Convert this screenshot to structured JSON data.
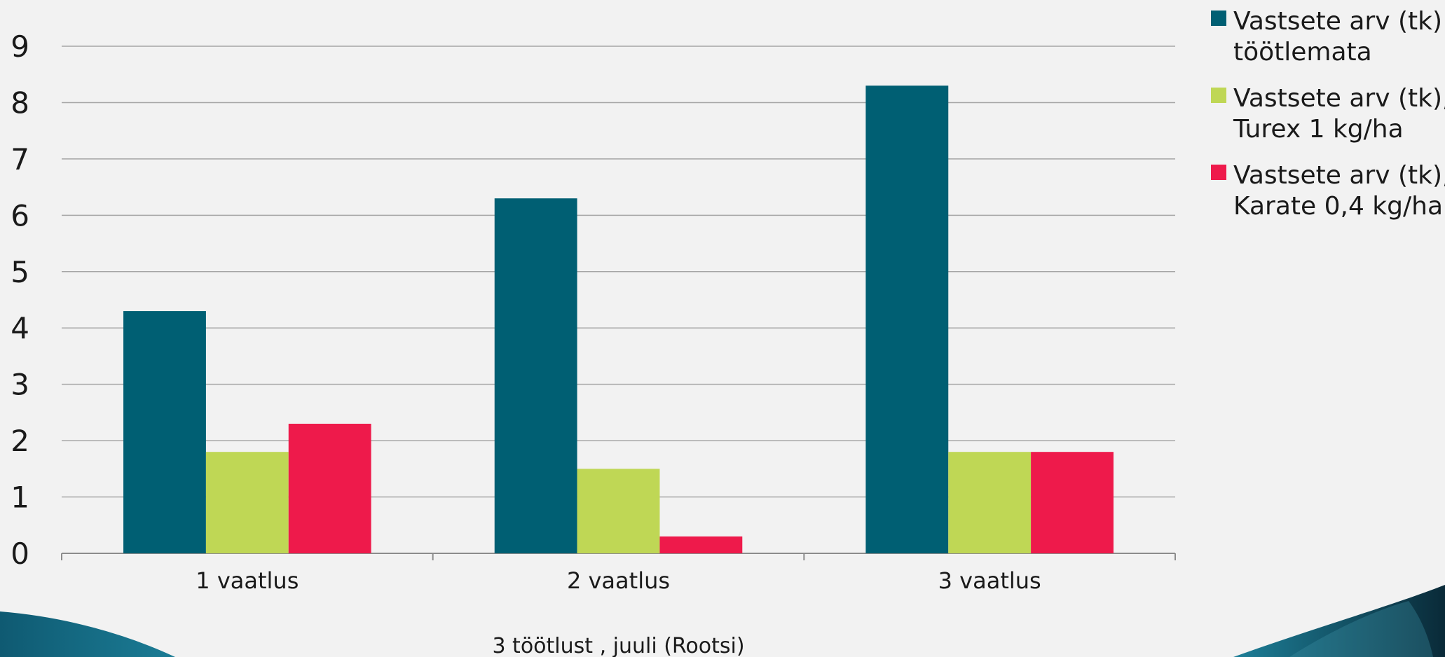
{
  "chart_data": {
    "type": "bar",
    "title": "",
    "xlabel": "3 töötlust , juuli (Rootsi)",
    "ylabel": "",
    "ylim": [
      0,
      9
    ],
    "yticks": [
      0,
      1,
      2,
      3,
      4,
      5,
      6,
      7,
      8,
      9
    ],
    "grid": true,
    "legend_position": "right",
    "categories": [
      "1 vaatlus",
      "2 vaatlus",
      "3 vaatlus"
    ],
    "series": [
      {
        "name": [
          "Vastsete arv (tk)",
          "töötlemata"
        ],
        "color": "#005f73",
        "values": [
          4.3,
          6.3,
          8.3
        ]
      },
      {
        "name": [
          "Vastsete arv (tk),",
          "Turex 1 kg/ha"
        ],
        "color": "#bfd755",
        "values": [
          1.8,
          1.5,
          1.8
        ]
      },
      {
        "name": [
          "Vastsete arv (tk),",
          "Karate 0,4 kg/ha"
        ],
        "color": "#ee1a4b",
        "values": [
          2.3,
          0.3,
          1.8
        ]
      }
    ]
  }
}
